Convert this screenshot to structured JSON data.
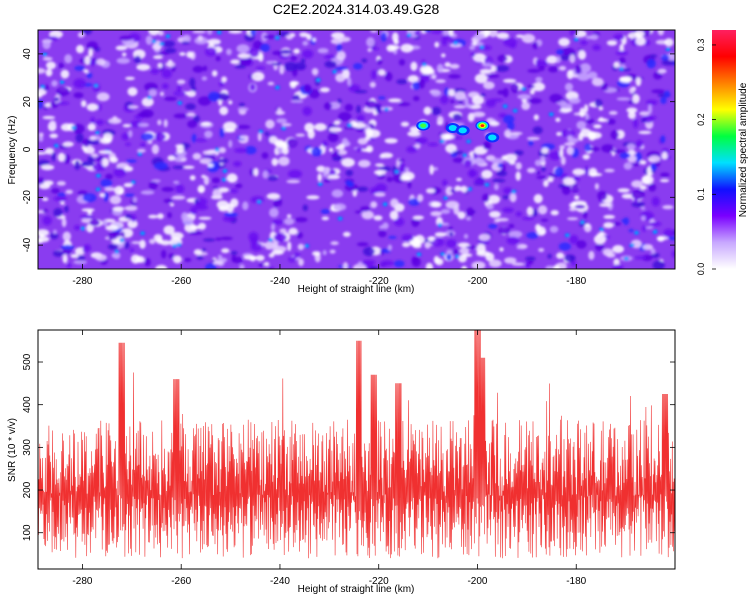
{
  "title": "C2E2.2024.314.03.49.G28",
  "chart_data": [
    {
      "type": "heatmap",
      "title": "",
      "xlabel": "Height of straight line (km)",
      "ylabel": "Frequency (Hz)",
      "xlim": [
        -289,
        -160
      ],
      "ylim": [
        -50,
        50
      ],
      "xticks": [
        -280,
        -260,
        -240,
        -220,
        -200,
        -180
      ],
      "yticks": [
        -40,
        -20,
        0,
        20,
        40
      ],
      "colorbar": {
        "label": "Normalized spectral amplitude",
        "range": [
          0.0,
          0.32
        ],
        "ticks": [
          "0.0",
          "0.1",
          "0.2",
          "0.3"
        ],
        "colors": [
          "#ffffff",
          "#c8a8ff",
          "#7a00ff",
          "#1010ff",
          "#00e0ff",
          "#00ff40",
          "#ffff00",
          "#ff8000",
          "#ff0000",
          "#ff2060"
        ]
      },
      "background_color": "#8a3cf0",
      "peaks": [
        {
          "x": -199,
          "y": 10,
          "value": 0.31
        },
        {
          "x": -197,
          "y": 5,
          "value": 0.14
        },
        {
          "x": -211,
          "y": 10,
          "value": 0.17
        },
        {
          "x": -205,
          "y": 9,
          "value": 0.15
        },
        {
          "x": -203,
          "y": 8,
          "value": 0.13
        }
      ]
    },
    {
      "type": "line",
      "title": "",
      "xlabel": "Height of straight line (km)",
      "ylabel": "SNR (10 * v/v)",
      "xlim": [
        -289,
        -160
      ],
      "ylim": [
        15,
        575
      ],
      "xticks": [
        -280,
        -260,
        -240,
        -220,
        -200,
        -180
      ],
      "yticks": [
        100,
        200,
        300,
        400,
        500
      ],
      "series": [
        {
          "color": "#f03030",
          "baseline": 150,
          "peaks": [
            {
              "x": -272,
              "y": 545
            },
            {
              "x": -261,
              "y": 460
            },
            {
              "x": -224,
              "y": 550
            },
            {
              "x": -221,
              "y": 470
            },
            {
              "x": -216,
              "y": 450
            },
            {
              "x": -200,
              "y": 575
            },
            {
              "x": -199,
              "y": 510
            },
            {
              "x": -162,
              "y": 425
            }
          ]
        }
      ]
    }
  ]
}
